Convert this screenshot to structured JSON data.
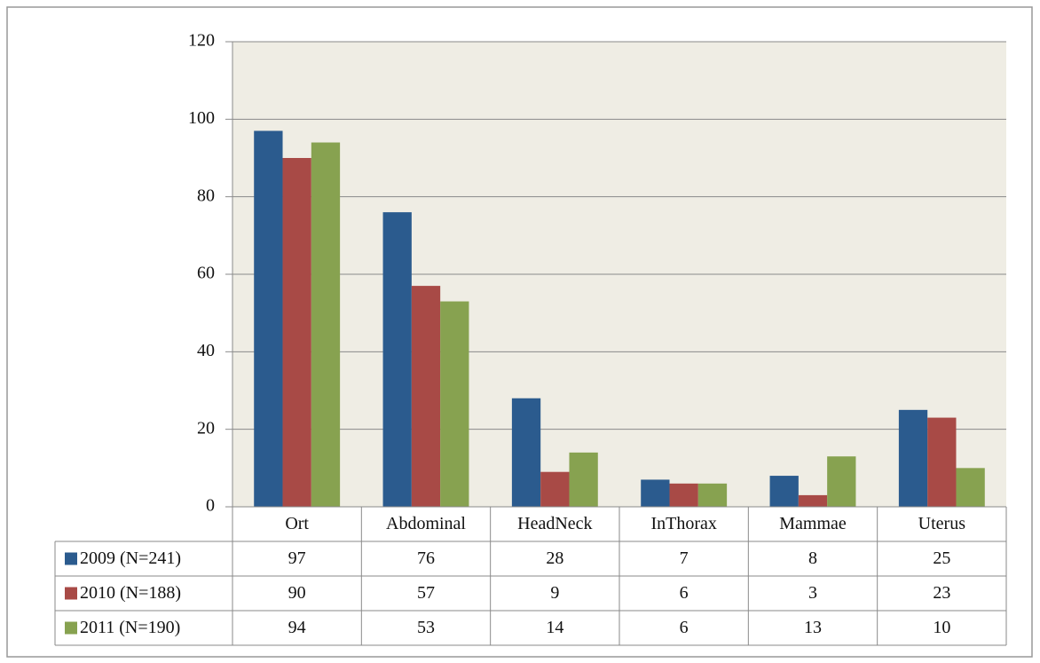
{
  "chart_data": {
    "type": "bar",
    "categories": [
      "Ort",
      "Abdominal",
      "HeadNeck",
      "InThorax",
      "Mammae",
      "Uterus"
    ],
    "series": [
      {
        "name": "2009 (N=241)",
        "color": "#2b5b8e",
        "values": [
          97,
          76,
          28,
          7,
          8,
          25
        ]
      },
      {
        "name": "2010 (N=188)",
        "color": "#a84a46",
        "values": [
          90,
          57,
          9,
          6,
          3,
          23
        ]
      },
      {
        "name": "2011 (N=190)",
        "color": "#87a250",
        "values": [
          94,
          53,
          14,
          6,
          13,
          10
        ]
      }
    ],
    "ylim": [
      0,
      120
    ],
    "yticks": [
      0,
      20,
      40,
      60,
      80,
      100,
      120
    ],
    "grid": true,
    "data_table": true
  }
}
